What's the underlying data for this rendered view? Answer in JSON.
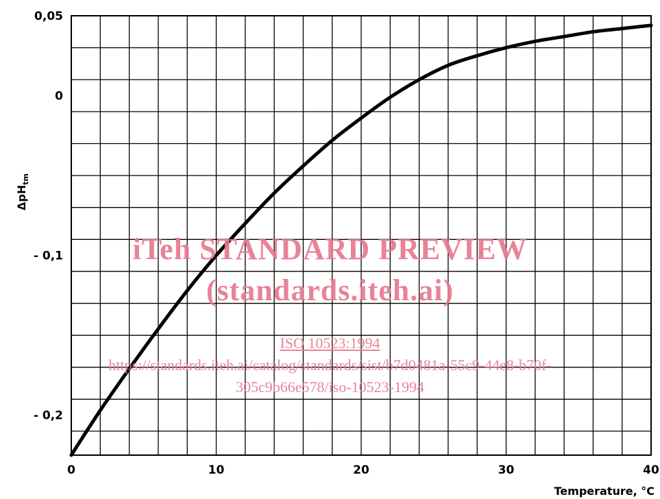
{
  "chart_data": {
    "type": "line",
    "title": "",
    "xlabel": "Temperature, °C",
    "ylabel": "ΔpH",
    "ylabel_subscript": "tm",
    "xlim": [
      0,
      40
    ],
    "ylim": [
      -0.225,
      0.05
    ],
    "x_ticks": [
      0,
      10,
      20,
      30,
      40
    ],
    "x_tick_labels": [
      "0",
      "10",
      "20",
      "30",
      "40"
    ],
    "y_ticks": [
      0.05,
      0,
      -0.1,
      -0.2
    ],
    "y_tick_labels": [
      "0,05",
      "0",
      "- 0,1",
      "- 0,2"
    ],
    "grid": true,
    "series": [
      {
        "x": [
          0,
          2,
          4,
          6,
          8,
          10,
          12,
          14,
          16,
          18,
          20,
          22,
          24,
          26,
          28,
          30,
          32,
          34,
          36,
          38,
          40
        ],
        "y": [
          -0.225,
          -0.197,
          -0.171,
          -0.146,
          -0.122,
          -0.1,
          -0.08,
          -0.061,
          -0.044,
          -0.028,
          -0.014,
          -0.001,
          0.01,
          0.019,
          0.025,
          0.03,
          0.034,
          0.037,
          0.04,
          0.042,
          0.044
        ]
      }
    ]
  },
  "watermark": {
    "line1": "iTeh STANDARD PREVIEW",
    "line2": "(standards.iteh.ai)",
    "line3": "ISO 10523:1994",
    "line4": "https://standards.iteh.ai/catalog/standards/sist/b7d0481a-55c9-44e8-b70f-",
    "line5": "305c9b66e578/iso-10523-1994"
  }
}
